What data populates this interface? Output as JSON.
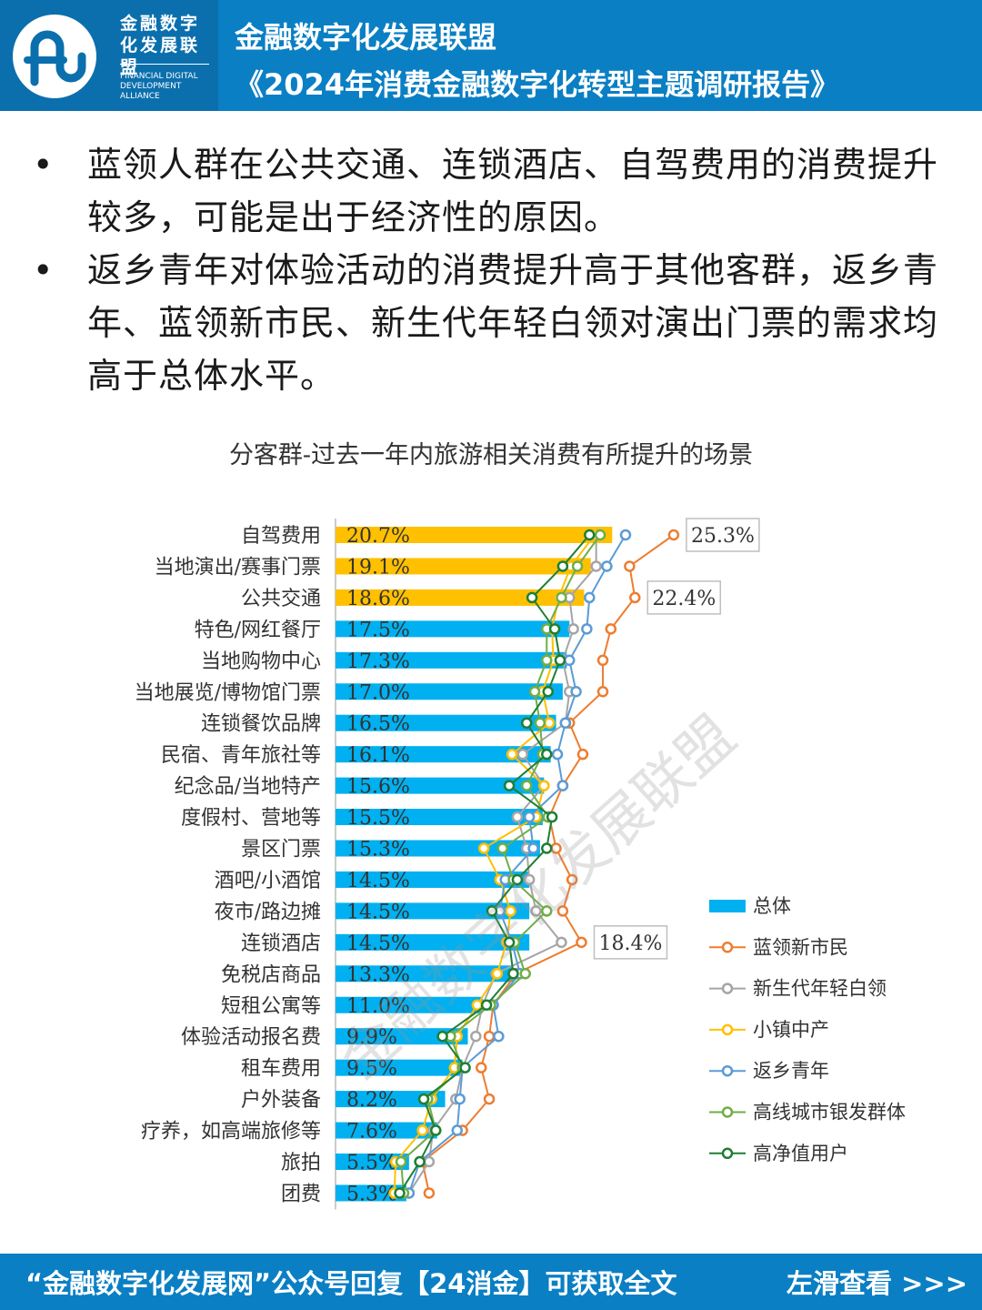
{
  "header": {
    "logo_cn": "金融数字化发展联盟",
    "logo_en": "FINANCIAL DIGITAL DEVELOPMENT ALLIANCE",
    "title": "金融数字化发展联盟",
    "subtitle": "《2024年消费金融数字化转型主题调研报告》"
  },
  "bullets": [
    "蓝领人群在公共交通、连锁酒店、自驾费用的消费提升较多，可能是出于经济性的原因。",
    "返乡青年对体验活动的消费提升高于其他客群，返乡青年、蓝领新市民、新生代年轻白领对演出门票的需求均高于总体水平。"
  ],
  "bullet_symbol": "•",
  "watermark": "金融数字化发展联盟",
  "footer": {
    "text": "“金融数字化发展网”公众号回复【24消金】可获取全文",
    "swipe": "左滑查看 >>>"
  },
  "chart_data": {
    "type": "bar",
    "title": "分客群-过去一年内旅游相关消费有所提升的场景",
    "categories": [
      "自驾费用",
      "当地演出/赛事门票",
      "公共交通",
      "特色/网红餐厅",
      "当地购物中心",
      "当地展览/博物馆门票",
      "连锁餐饮品牌",
      "民宿、青年旅社等",
      "纪念品/当地特产",
      "度假村、营地等",
      "景区门票",
      "酒吧/小酒馆",
      "夜市/路边摊",
      "连锁酒店",
      "免税店商品",
      "短租公寓等",
      "体验活动报名费",
      "租车费用",
      "户外装备",
      "疗养，如高端旅修等",
      "旅拍",
      "团费"
    ],
    "bar_series": {
      "name": "总体",
      "values": [
        20.7,
        19.1,
        18.6,
        17.5,
        17.3,
        17.0,
        16.5,
        16.1,
        15.6,
        15.5,
        15.3,
        14.5,
        14.5,
        14.5,
        13.3,
        11.0,
        9.9,
        9.5,
        8.2,
        7.6,
        5.5,
        5.3
      ],
      "labels": [
        "20.7%",
        "19.1%",
        "18.6%",
        "17.5%",
        "17.3%",
        "17.0%",
        "16.5%",
        "16.1%",
        "15.6%",
        "15.5%",
        "15.3%",
        "14.5%",
        "14.5%",
        "14.5%",
        "13.3%",
        "11.0%",
        "9.9%",
        "9.5%",
        "8.2%",
        "7.6%",
        "5.5%",
        "5.3%"
      ],
      "highlight_count": 3,
      "highlight_color": "#ffc000",
      "color": "#00b0f0"
    },
    "line_series": [
      {
        "name": "蓝领新市民",
        "color": "#ed7d31",
        "values": [
          25.3,
          22.0,
          22.4,
          20.6,
          20.0,
          20.0,
          17.5,
          18.5,
          17.0,
          16.0,
          16.5,
          17.7,
          17.0,
          18.4,
          13.5,
          11.8,
          11.5,
          10.9,
          11.5,
          9.5,
          6.5,
          7.0
        ]
      },
      {
        "name": "新生代年轻白领",
        "color": "#a5a5a5",
        "values": [
          19.5,
          19.5,
          17.5,
          17.8,
          17.0,
          17.5,
          17.2,
          14.0,
          15.6,
          13.6,
          14.3,
          14.5,
          15.0,
          16.9,
          12.0,
          11.0,
          10.5,
          9.5,
          9.0,
          7.3,
          7.0,
          5.5
        ]
      },
      {
        "name": "小镇中产",
        "color": "#ffc000",
        "values": [
          19.4,
          17.6,
          16.7,
          16.2,
          16.3,
          15.5,
          16.0,
          13.2,
          15.6,
          15.0,
          11.1,
          12.3,
          13.1,
          12.8,
          12.1,
          10.6,
          9.1,
          8.9,
          7.2,
          6.5,
          4.5,
          4.4
        ]
      },
      {
        "name": "返乡青年",
        "color": "#5b9bd5",
        "values": [
          21.7,
          20.3,
          19.0,
          18.8,
          17.5,
          18.0,
          17.2,
          16.6,
          17.0,
          14.5,
          14.8,
          12.7,
          12.3,
          13.2,
          13.8,
          11.8,
          12.2,
          9.5,
          9.3,
          9.1,
          6.3,
          5.5
        ]
      },
      {
        "name": "高线城市银发群体",
        "color": "#70ad47",
        "values": [
          19.8,
          18.1,
          16.9,
          15.8,
          15.8,
          14.9,
          15.3,
          15.5,
          14.3,
          15.9,
          12.5,
          13.3,
          15.8,
          13.4,
          14.2,
          11.6,
          8.6,
          9.5,
          6.9,
          7.5,
          4.9,
          5.1
        ]
      },
      {
        "name": "高净值用户",
        "color": "#1e7e34",
        "values": [
          19.0,
          17.0,
          14.7,
          16.4,
          16.8,
          15.9,
          14.3,
          15.8,
          13.0,
          16.2,
          15.8,
          13.6,
          11.7,
          13.0,
          13.3,
          11.3,
          8.0,
          9.7,
          6.6,
          7.5,
          6.3,
          4.8
        ]
      }
    ],
    "callouts": [
      {
        "index": 0,
        "series": "蓝领新市民",
        "label": "25.3%"
      },
      {
        "index": 2,
        "series": "蓝领新市民",
        "label": "22.4%"
      },
      {
        "index": 13,
        "series": "蓝领新市民",
        "label": "18.4%"
      }
    ],
    "legend_position": "right",
    "xlim": [
      0,
      28
    ]
  }
}
